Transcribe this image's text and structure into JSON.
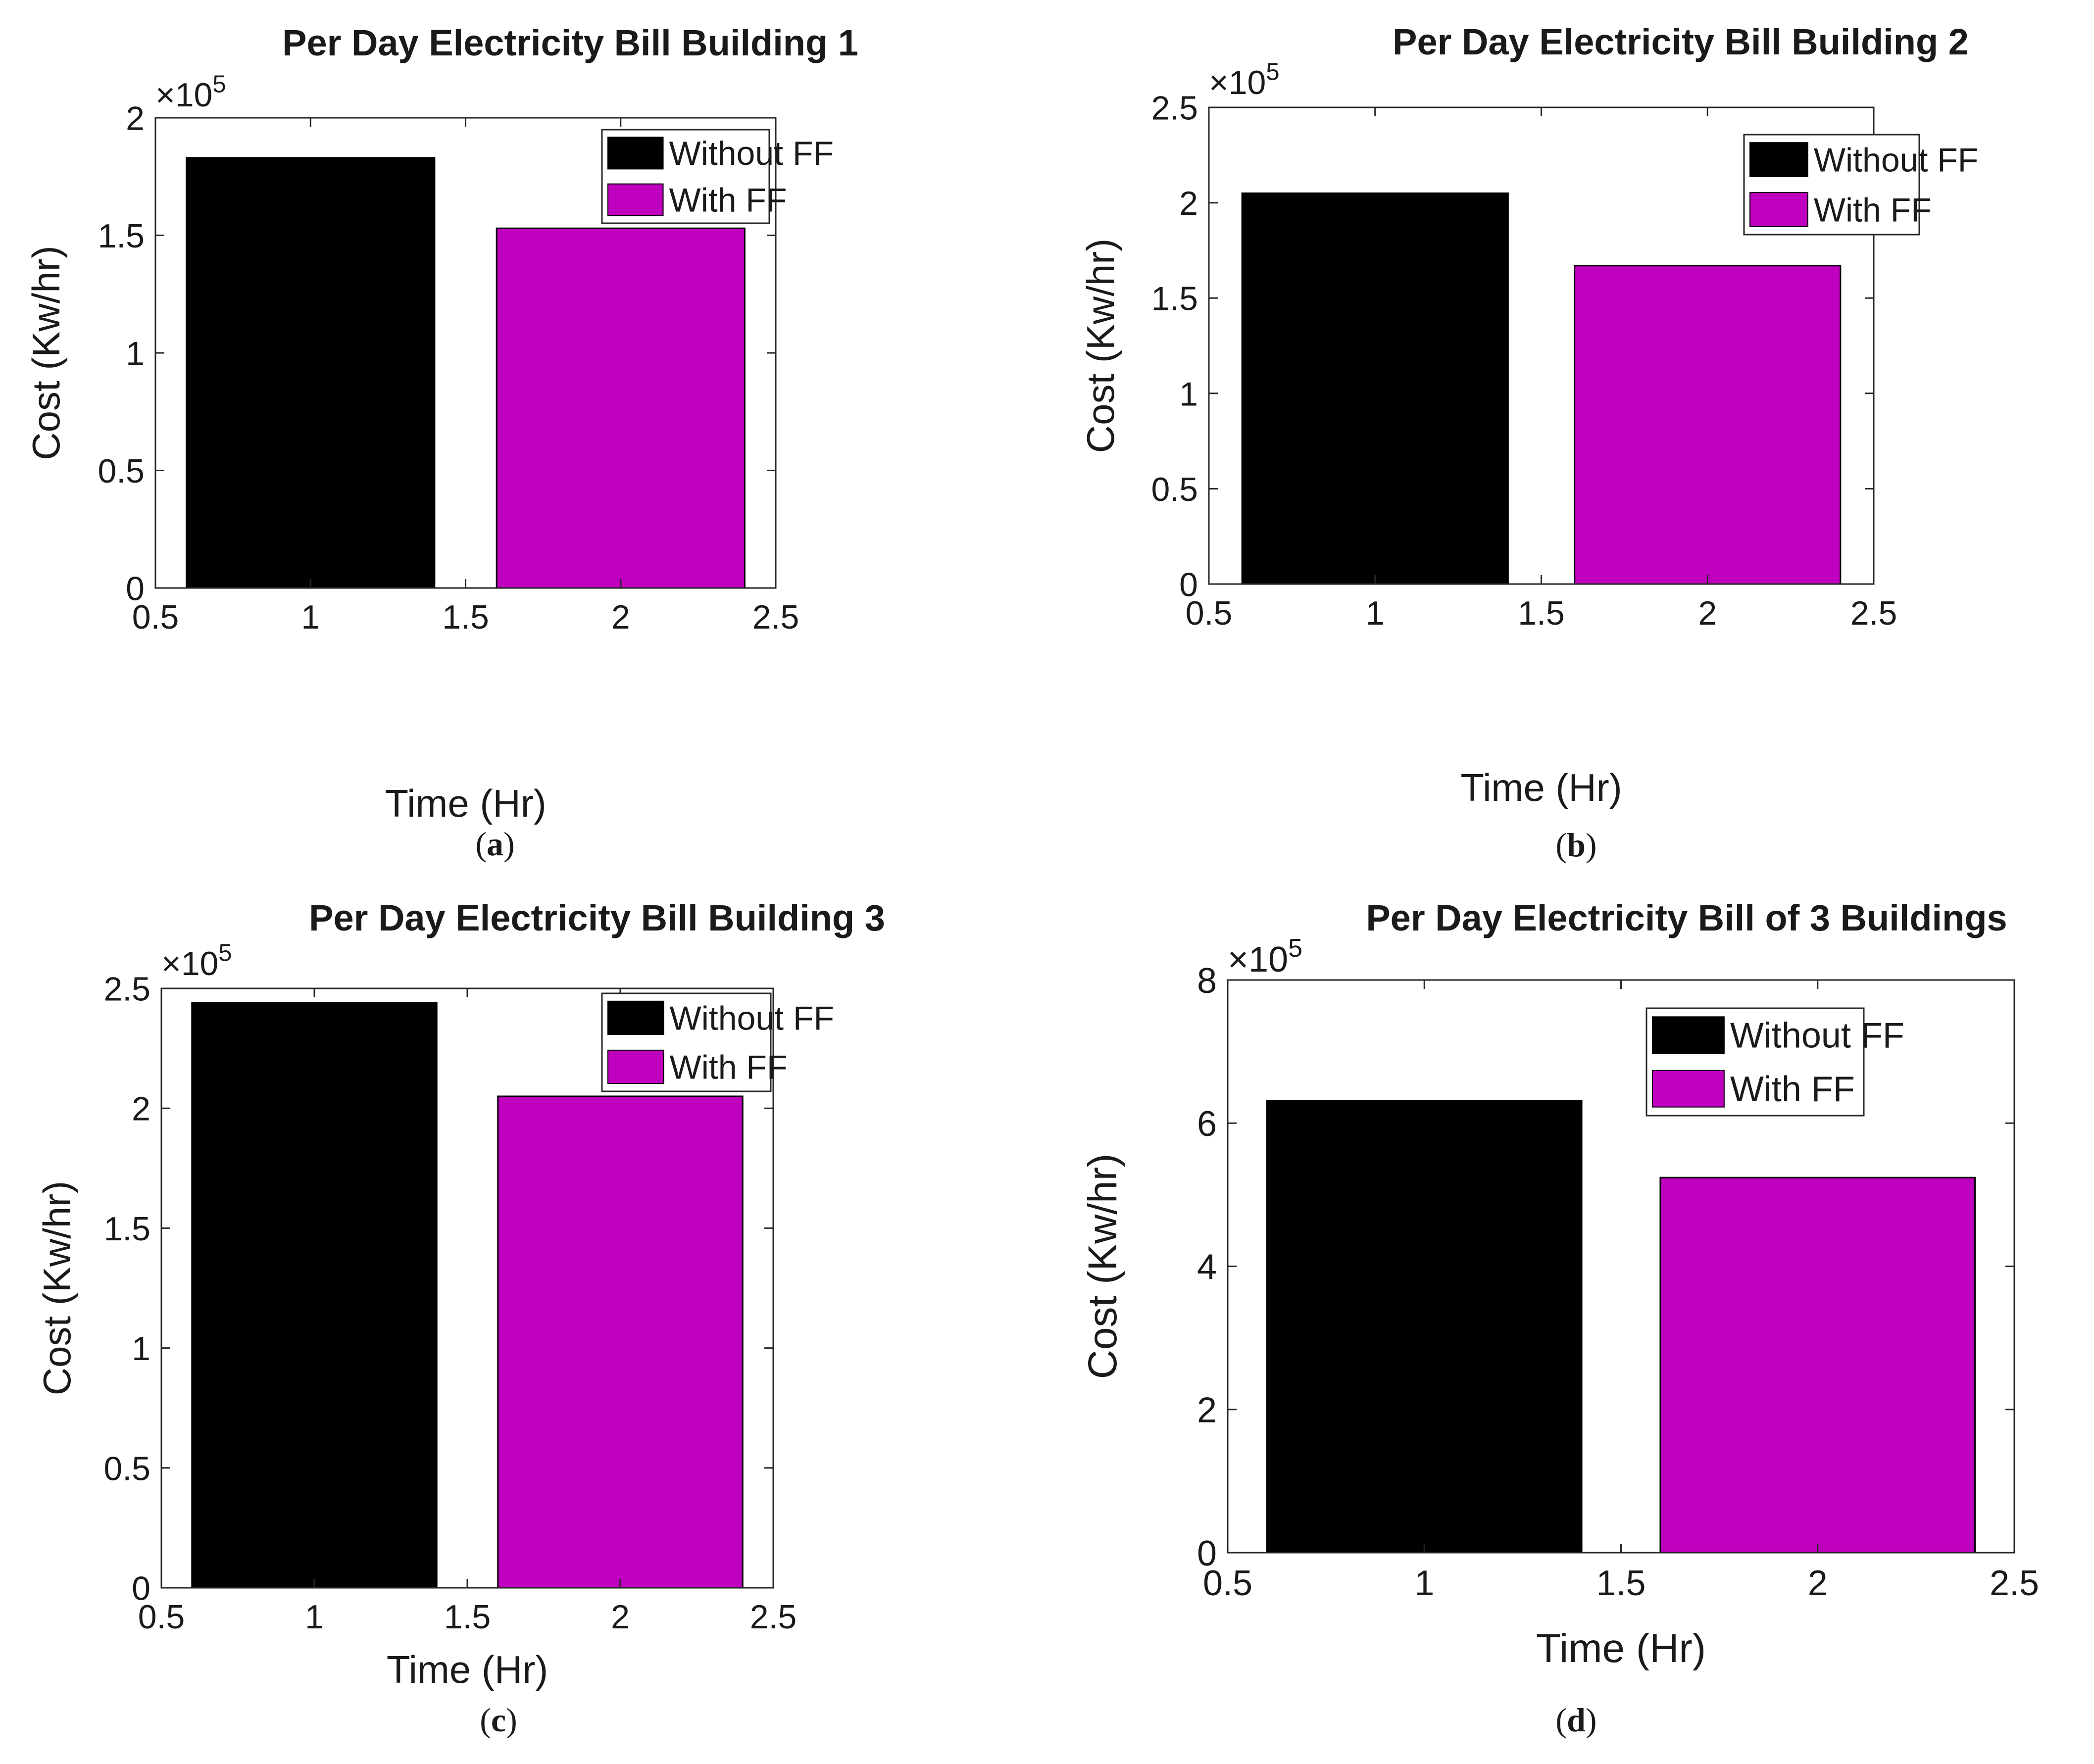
{
  "figure": {
    "panels": [
      {
        "caption_label": "a"
      },
      {
        "caption_label": "b"
      },
      {
        "caption_label": "c"
      },
      {
        "caption_label": "d"
      }
    ]
  },
  "colors": {
    "without_ff": "#000000",
    "with_ff": "#bf00bf",
    "axis": "#262626",
    "legend_border": "#262626"
  },
  "chart_data": [
    {
      "type": "bar",
      "title": "Per Day Electricity Bill Building 1",
      "xlabel": "Time (Hr)",
      "ylabel": "Cost (Kw/hr)",
      "exponent_label": "×10",
      "exponent_power": "5",
      "xlim": [
        0.5,
        2.5
      ],
      "xticks": [
        0.5,
        1,
        1.5,
        2,
        2.5
      ],
      "xtick_labels": [
        "0.5",
        "1",
        "1.5",
        "2",
        "2.5"
      ],
      "ylim": [
        0,
        2
      ],
      "yticks": [
        0,
        0.5,
        1,
        1.5,
        2
      ],
      "ytick_labels": [
        "0",
        "0.5",
        "1",
        "1.5",
        "2"
      ],
      "bars": [
        {
          "x": 1,
          "value": 1.83,
          "series": "Without FF"
        },
        {
          "x": 2,
          "value": 1.53,
          "series": "With FF"
        }
      ],
      "bar_width": 0.8,
      "legend": [
        "Without FF",
        "With FF"
      ],
      "legend_position": "top-right"
    },
    {
      "type": "bar",
      "title": "Per Day Electricity Bill Building 2",
      "xlabel": "Time (Hr)",
      "ylabel": "Cost (Kw/hr)",
      "exponent_label": "×10",
      "exponent_power": "5",
      "xlim": [
        0.5,
        2.5
      ],
      "xticks": [
        0.5,
        1,
        1.5,
        2,
        2.5
      ],
      "xtick_labels": [
        "0.5",
        "1",
        "1.5",
        "2",
        "2.5"
      ],
      "ylim": [
        0,
        2.5
      ],
      "yticks": [
        0,
        0.5,
        1,
        1.5,
        2,
        2.5
      ],
      "ytick_labels": [
        "0",
        "0.5",
        "1",
        "1.5",
        "2",
        "2.5"
      ],
      "bars": [
        {
          "x": 1,
          "value": 2.05,
          "series": "Without FF"
        },
        {
          "x": 2,
          "value": 1.67,
          "series": "With FF"
        }
      ],
      "bar_width": 0.8,
      "legend": [
        "Without FF",
        "With FF"
      ],
      "legend_position": "top-right"
    },
    {
      "type": "bar",
      "title": "Per Day Electricity Bill Building 3",
      "xlabel": "Time (Hr)",
      "ylabel": "Cost (Kw/hr)",
      "exponent_label": "×10",
      "exponent_power": "5",
      "xlim": [
        0.5,
        2.5
      ],
      "xticks": [
        0.5,
        1,
        1.5,
        2,
        2.5
      ],
      "xtick_labels": [
        "0.5",
        "1",
        "1.5",
        "2",
        "2.5"
      ],
      "ylim": [
        0,
        2.5
      ],
      "yticks": [
        0,
        0.5,
        1,
        1.5,
        2,
        2.5
      ],
      "ytick_labels": [
        "0",
        "0.5",
        "1",
        "1.5",
        "2",
        "2.5"
      ],
      "bars": [
        {
          "x": 1,
          "value": 2.44,
          "series": "Without FF"
        },
        {
          "x": 2,
          "value": 2.05,
          "series": "With FF"
        }
      ],
      "bar_width": 0.8,
      "legend": [
        "Without FF",
        "With FF"
      ],
      "legend_position": "top-right"
    },
    {
      "type": "bar",
      "title": "Per Day Electricity Bill of 3 Buildings",
      "xlabel": "Time (Hr)",
      "ylabel": "Cost (Kw/hr)",
      "exponent_label": "×10",
      "exponent_power": "5",
      "xlim": [
        0.5,
        2.5
      ],
      "xticks": [
        0.5,
        1,
        1.5,
        2,
        2.5
      ],
      "xtick_labels": [
        "0.5",
        "1",
        "1.5",
        "2",
        "2.5"
      ],
      "ylim": [
        0,
        8
      ],
      "yticks": [
        0,
        2,
        4,
        6,
        8
      ],
      "ytick_labels": [
        "0",
        "2",
        "4",
        "6",
        "8"
      ],
      "bars": [
        {
          "x": 1,
          "value": 6.31,
          "series": "Without FF"
        },
        {
          "x": 2,
          "value": 5.24,
          "series": "With FF"
        }
      ],
      "bar_width": 0.8,
      "legend": [
        "Without FF",
        "With FF"
      ],
      "legend_position": "top-right"
    }
  ]
}
